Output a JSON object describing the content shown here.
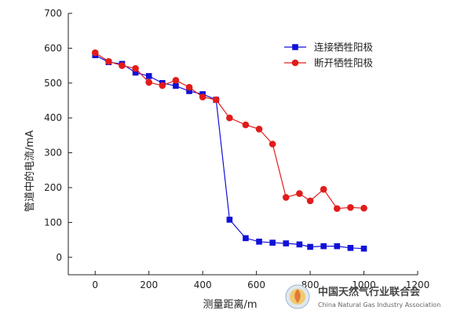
{
  "chart_data": {
    "type": "line",
    "xlabel": "测量距离/m",
    "ylabel": "管道中的电流/mA",
    "xlim": [
      -100,
      1200
    ],
    "ylim": [
      -50,
      700
    ],
    "xticks": [
      0,
      200,
      400,
      600,
      800,
      1000,
      1200
    ],
    "yticks": [
      0,
      100,
      200,
      300,
      400,
      500,
      600,
      700
    ],
    "legend_position": "top-right",
    "series": [
      {
        "name": "连接牺牲阳极",
        "color": "#1010d8",
        "marker": "square",
        "x": [
          0,
          50,
          100,
          150,
          200,
          250,
          300,
          350,
          400,
          450,
          500,
          560,
          610,
          660,
          710,
          760,
          800,
          850,
          900,
          950,
          1000
        ],
        "y": [
          580,
          560,
          555,
          530,
          520,
          500,
          492,
          477,
          468,
          452,
          108,
          55,
          45,
          42,
          40,
          37,
          30,
          32,
          32,
          27,
          25
        ]
      },
      {
        "name": "断开牺牲阳极",
        "color": "#e21b1b",
        "marker": "circle",
        "x": [
          0,
          50,
          100,
          150,
          200,
          250,
          300,
          350,
          400,
          450,
          500,
          560,
          610,
          660,
          710,
          760,
          800,
          850,
          900,
          950,
          1000
        ],
        "y": [
          587,
          562,
          550,
          542,
          502,
          493,
          508,
          488,
          460,
          452,
          400,
          380,
          368,
          325,
          172,
          183,
          162,
          195,
          140,
          143,
          141
        ]
      }
    ]
  },
  "watermark": {
    "chinese": "中国天然气行业联合会",
    "english": "China Natural Gas Industry Association"
  }
}
